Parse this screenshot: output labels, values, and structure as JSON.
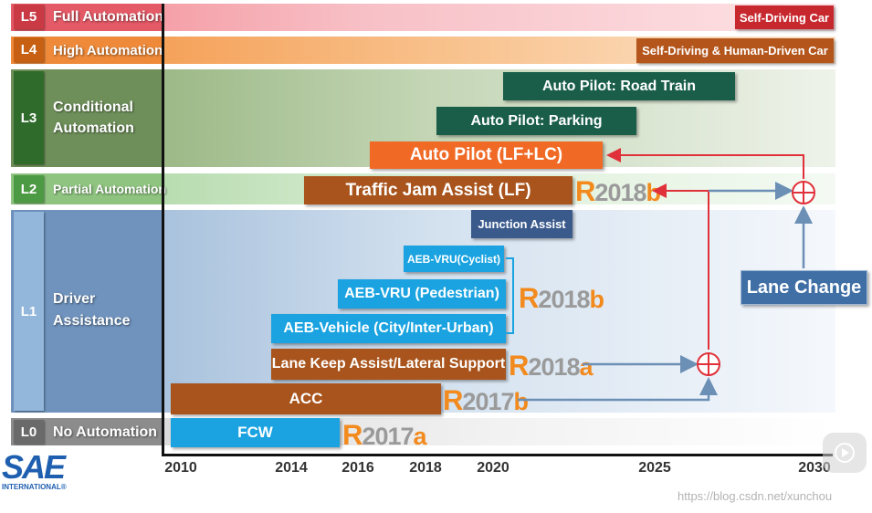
{
  "levels": [
    {
      "code": "L5",
      "name": "Full Automation"
    },
    {
      "code": "L4",
      "name": "High Automation"
    },
    {
      "code": "L3",
      "name_line1": "Conditional",
      "name_line2": "Automation"
    },
    {
      "code": "L2",
      "name": "Partial Automation"
    },
    {
      "code": "L1",
      "name_line1": "Driver",
      "name_line2": "Assistance"
    },
    {
      "code": "L0",
      "name": "No Automation"
    }
  ],
  "features": {
    "self_driving_car": "Self-Driving Car",
    "self_driving_human": "Self-Driving & Human-Driven Car",
    "road_train": "Auto Pilot: Road Train",
    "parking": "Auto Pilot: Parking",
    "lf_lc": "Auto Pilot (LF+LC)",
    "tja": "Traffic Jam Assist (LF)",
    "junction": "Junction Assist",
    "aeb_cyclist": "AEB-VRU(Cyclist)",
    "aeb_ped": "AEB-VRU (Pedestrian)",
    "aeb_vehicle": "AEB-Vehicle (City/Inter-Urban)",
    "lka": "Lane Keep Assist/Lateral Support",
    "acc": "ACC",
    "fcw": "FCW",
    "lane_change": "Lane Change"
  },
  "releases": {
    "r2018b_top": {
      "r": "R",
      "year": "2018",
      "suffix": "b"
    },
    "r2018b_aeb": {
      "r": "R",
      "year": "2018",
      "suffix": "b"
    },
    "r2018a": {
      "r": "R",
      "year": "2018",
      "suffix": "a"
    },
    "r2017b": {
      "r": "R",
      "year": "2017",
      "suffix": "b"
    },
    "r2017a": {
      "r": "R",
      "year": "2017",
      "suffix": "a"
    }
  },
  "axis": {
    "ticks": [
      "2010",
      "2014",
      "2016",
      "2018",
      "2020",
      "2025",
      "2030"
    ]
  },
  "logo": {
    "text": "SAE",
    "subtext": "INTERNATIONAL®"
  },
  "watermark": "https://blog.csdn.net/xunchou",
  "colors": {
    "orange_tag": "#f28a1e",
    "brown_bar": "#b0581b",
    "teal_bar": "#1a5e4a",
    "cyan_bar": "#1aa3e0",
    "navy_bar": "#3a5a8c",
    "red_arrow": "#e0313a",
    "blue_arrow": "#6c8fb5"
  }
}
